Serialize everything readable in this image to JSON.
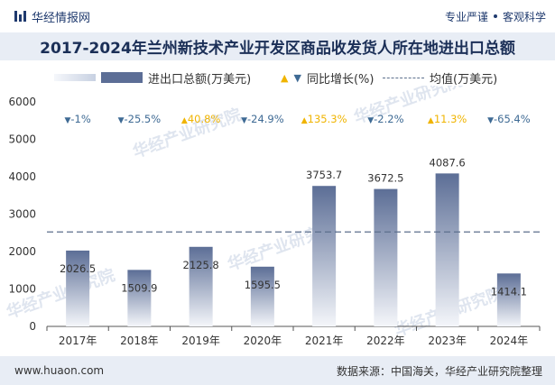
{
  "header": {
    "brand": "华经情报网",
    "slogan_left": "专业严谨",
    "slogan_right": "客观科学"
  },
  "title": "2017-2024年兰州新技术产业开发区商品收发货人所在地进出口总额",
  "legend": {
    "bar": "进出口总额(万美元)",
    "growth": "同比增长(%)",
    "avg": "均值(万美元)"
  },
  "watermark": "华经产业研究院",
  "footer": {
    "website": "www.huaon.com",
    "source": "数据来源：中国海关，华经产业研究院整理"
  },
  "colors": {
    "bar_top": "#5c6e96",
    "up": "#f0b400",
    "down": "#3e6a94",
    "avg_line": "#5c6f8c"
  },
  "chart_data": {
    "type": "bar",
    "categories": [
      "2017年",
      "2018年",
      "2019年",
      "2020年",
      "2021年",
      "2022年",
      "2023年",
      "2024年"
    ],
    "series": [
      {
        "name": "进出口总额(万美元)",
        "values": [
          2026.5,
          1509.9,
          2125.8,
          1595.5,
          3753.7,
          3672.5,
          4087.6,
          1414.1
        ]
      }
    ],
    "value_labels": [
      "2026.5",
      "1509.9",
      "2125.8",
      "1595.5",
      "3753.7",
      "3672.5",
      "4087.6",
      "1414.1"
    ],
    "growth": [
      {
        "label": "-1%",
        "dir": "down"
      },
      {
        "label": "-25.5%",
        "dir": "down"
      },
      {
        "label": "40.8%",
        "dir": "up"
      },
      {
        "label": "-24.9%",
        "dir": "down"
      },
      {
        "label": "135.3%",
        "dir": "up"
      },
      {
        "label": "-2.2%",
        "dir": "down"
      },
      {
        "label": "11.3%",
        "dir": "up"
      },
      {
        "label": "-65.4%",
        "dir": "down"
      }
    ],
    "average": 2523.2,
    "yticks": [
      "0",
      "1000",
      "2000",
      "3000",
      "4000",
      "5000",
      "6000"
    ],
    "ylim": [
      0,
      6000
    ],
    "grid": false,
    "legend_position": "top"
  }
}
